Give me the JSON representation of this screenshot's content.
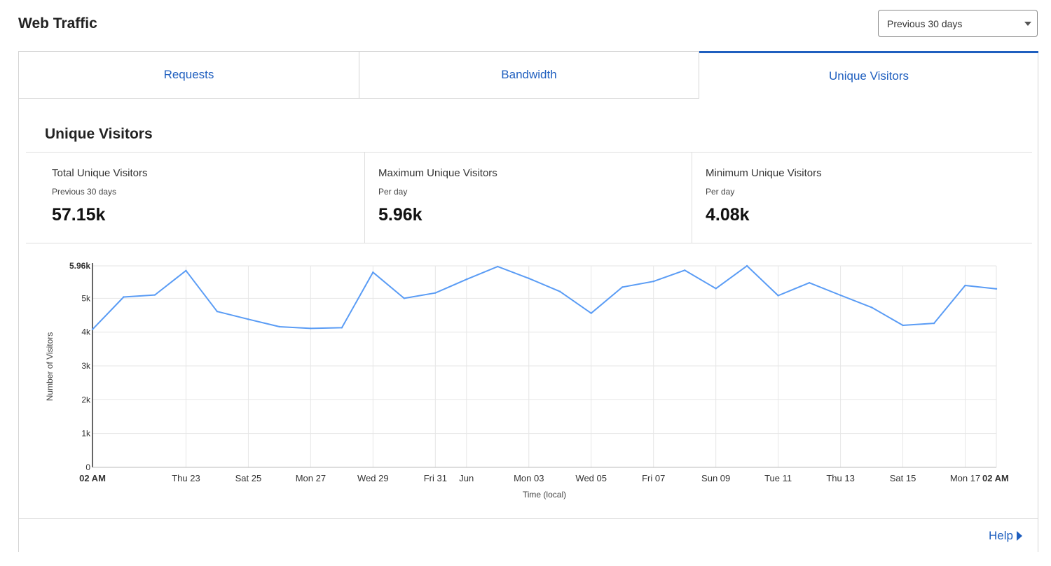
{
  "header": {
    "title": "Web Traffic"
  },
  "range_select": {
    "value": "Previous 30 days"
  },
  "tabs": [
    {
      "label": "Requests",
      "active": false
    },
    {
      "label": "Bandwidth",
      "active": false
    },
    {
      "label": "Unique Visitors",
      "active": true
    }
  ],
  "section": {
    "title": "Unique Visitors"
  },
  "stats": [
    {
      "label": "Total Unique Visitors",
      "sub": "Previous 30 days",
      "value": "57.15k"
    },
    {
      "label": "Maximum Unique Visitors",
      "sub": "Per day",
      "value": "5.96k"
    },
    {
      "label": "Minimum Unique Visitors",
      "sub": "Per day",
      "value": "4.08k"
    }
  ],
  "footer": {
    "help_label": "Help"
  },
  "colors": {
    "accent": "#1f5fbf",
    "line": "#5a9cf5"
  },
  "chart_data": {
    "type": "line",
    "xlabel": "Time (local)",
    "ylabel": "Number of Visitors",
    "ylim": [
      0,
      5960
    ],
    "y_ticks": [
      {
        "value": 0,
        "label": "0"
      },
      {
        "value": 1000,
        "label": "1k"
      },
      {
        "value": 2000,
        "label": "2k"
      },
      {
        "value": 3000,
        "label": "3k"
      },
      {
        "value": 4000,
        "label": "4k"
      },
      {
        "value": 5000,
        "label": "5k"
      },
      {
        "value": 5960,
        "label": "5.96k",
        "bold": true
      }
    ],
    "x_ticks": [
      {
        "x": 0,
        "label": "02 AM",
        "bold": true
      },
      {
        "x": 3,
        "label": "Thu 23"
      },
      {
        "x": 5,
        "label": "Sat 25"
      },
      {
        "x": 7,
        "label": "Mon 27"
      },
      {
        "x": 9,
        "label": "Wed 29"
      },
      {
        "x": 11,
        "label": "Fri 31"
      },
      {
        "x": 12,
        "label": "Jun"
      },
      {
        "x": 14,
        "label": "Mon 03"
      },
      {
        "x": 16,
        "label": "Wed 05"
      },
      {
        "x": 18,
        "label": "Fri 07"
      },
      {
        "x": 20,
        "label": "Sun 09"
      },
      {
        "x": 22,
        "label": "Tue 11"
      },
      {
        "x": 24,
        "label": "Thu 13"
      },
      {
        "x": 26,
        "label": "Sat 15"
      },
      {
        "x": 28,
        "label": "Mon 17"
      },
      {
        "x": 29,
        "label": "02 AM",
        "bold": true
      }
    ],
    "series": [
      {
        "values": [
          4080,
          5040,
          5100,
          5820,
          4610,
          4380,
          4160,
          4110,
          4130,
          5770,
          5000,
          5160,
          5560,
          5940,
          5590,
          5200,
          4560,
          5330,
          5500,
          5830,
          5290,
          5960,
          5080,
          5460,
          5090,
          4730,
          4200,
          4260,
          5380,
          5280
        ]
      }
    ]
  }
}
